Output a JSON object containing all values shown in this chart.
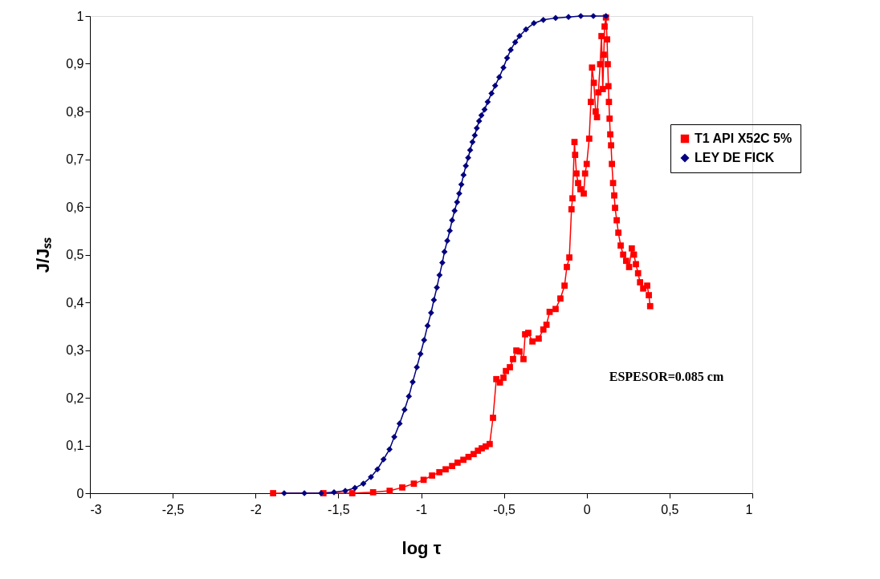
{
  "chart_data": {
    "type": "line",
    "xlabel": "log τ",
    "ylabel": "J/Jₛₛ",
    "xlim": [
      -3,
      1
    ],
    "xticks": [
      -3,
      {
        "value": -2.5,
        "label": "-2,5"
      },
      -2,
      {
        "value": -1.5,
        "label": "-1,5"
      },
      -1,
      {
        "value": -0.5,
        "label": "-0,5"
      },
      0,
      {
        "value": 0.5,
        "label": "0,5"
      },
      1
    ],
    "ylim": [
      0,
      1
    ],
    "yticks": [
      0,
      {
        "value": 0.1,
        "label": "0,1"
      },
      {
        "value": 0.2,
        "label": "0,2"
      },
      {
        "value": 0.3,
        "label": "0,3"
      },
      {
        "value": 0.4,
        "label": "0,4"
      },
      {
        "value": 0.5,
        "label": "0,5"
      },
      {
        "value": 0.6,
        "label": "0,6"
      },
      {
        "value": 0.7,
        "label": "0,7"
      },
      {
        "value": 0.8,
        "label": "0,8"
      },
      {
        "value": 0.9,
        "label": "0,9"
      },
      1
    ],
    "grid": false,
    "legend": "right",
    "line_style": "solid",
    "annotations": [
      "ESPESOR=0.085 cm"
    ],
    "series": [
      {
        "name": "T1 API X52C 5%",
        "color": "#ff0000",
        "marker": "square",
        "x": [
          -1.894,
          -1.59,
          -1.416,
          -1.29,
          -1.19,
          -1.114,
          -1.044,
          -0.985,
          -0.934,
          -0.89,
          -0.852,
          -0.813,
          -0.78,
          -0.745,
          -0.714,
          -0.683,
          -0.657,
          -0.634,
          -0.61,
          -0.586,
          -0.566,
          -0.546,
          -0.524,
          -0.503,
          -0.488,
          -0.464,
          -0.445,
          -0.425,
          -0.406,
          -0.382,
          -0.372,
          -0.353,
          -0.328,
          -0.29,
          -0.262,
          -0.243,
          -0.224,
          -0.188,
          -0.159,
          -0.134,
          -0.12,
          -0.105,
          -0.092,
          -0.086,
          -0.074,
          -0.07,
          -0.062,
          -0.052,
          -0.038,
          -0.018,
          -0.01,
          0.0,
          0.015,
          0.025,
          0.032,
          0.043,
          0.054,
          0.062,
          0.07,
          0.081,
          0.089,
          0.097,
          0.103,
          0.108,
          0.116,
          0.123,
          0.127,
          0.131,
          0.134,
          0.138,
          0.142,
          0.147,
          0.152,
          0.159,
          0.166,
          0.171,
          0.181,
          0.191,
          0.205,
          0.22,
          0.238,
          0.256,
          0.272,
          0.285,
          0.297,
          0.31,
          0.322,
          0.341,
          0.365,
          0.375,
          0.383
        ],
        "values": [
          0,
          0,
          0,
          0.002,
          0.005,
          0.012,
          0.02,
          0.028,
          0.037,
          0.044,
          0.05,
          0.057,
          0.064,
          0.07,
          0.076,
          0.082,
          0.089,
          0.094,
          0.098,
          0.103,
          0.158,
          0.239,
          0.232,
          0.242,
          0.256,
          0.264,
          0.281,
          0.299,
          0.297,
          0.281,
          0.333,
          0.336,
          0.318,
          0.324,
          0.343,
          0.353,
          0.38,
          0.386,
          0.408,
          0.435,
          0.474,
          0.494,
          0.595,
          0.618,
          0.736,
          0.709,
          0.67,
          0.65,
          0.637,
          0.628,
          0.67,
          0.69,
          0.743,
          0.82,
          0.892,
          0.86,
          0.8,
          0.788,
          0.84,
          0.899,
          0.958,
          0.847,
          0.919,
          0.978,
          0.997,
          0.951,
          0.899,
          0.853,
          0.82,
          0.785,
          0.752,
          0.729,
          0.69,
          0.65,
          0.624,
          0.598,
          0.572,
          0.546,
          0.519,
          0.5,
          0.487,
          0.474,
          0.513,
          0.5,
          0.48,
          0.461,
          0.442,
          0.429,
          0.435,
          0.415,
          0.392
        ]
      },
      {
        "name": "LEY DE FICK",
        "color": "#000080",
        "marker": "diamond",
        "x": [
          -1.827,
          -1.705,
          -1.604,
          -1.526,
          -1.458,
          -1.4,
          -1.349,
          -1.303,
          -1.264,
          -1.227,
          -1.191,
          -1.162,
          -1.13,
          -1.1,
          -1.074,
          -1.051,
          -1.026,
          -1.004,
          -0.982,
          -0.961,
          -0.94,
          -0.923,
          -0.905,
          -0.889,
          -0.872,
          -0.859,
          -0.842,
          -0.827,
          -0.813,
          -0.798,
          -0.783,
          -0.77,
          -0.757,
          -0.744,
          -0.73,
          -0.716,
          -0.704,
          -0.69,
          -0.676,
          -0.664,
          -0.65,
          -0.636,
          -0.617,
          -0.598,
          -0.575,
          -0.553,
          -0.528,
          -0.503,
          -0.481,
          -0.459,
          -0.432,
          -0.406,
          -0.367,
          -0.319,
          -0.262,
          -0.188,
          -0.11,
          -0.036,
          0.04,
          0.116
        ],
        "values": [
          0,
          0,
          0,
          0.002,
          0.005,
          0.011,
          0.02,
          0.034,
          0.05,
          0.071,
          0.092,
          0.118,
          0.146,
          0.175,
          0.203,
          0.233,
          0.264,
          0.292,
          0.321,
          0.351,
          0.378,
          0.405,
          0.431,
          0.457,
          0.483,
          0.506,
          0.529,
          0.55,
          0.572,
          0.592,
          0.61,
          0.628,
          0.647,
          0.667,
          0.686,
          0.703,
          0.719,
          0.736,
          0.75,
          0.765,
          0.78,
          0.792,
          0.804,
          0.82,
          0.838,
          0.854,
          0.872,
          0.892,
          0.912,
          0.929,
          0.945,
          0.958,
          0.972,
          0.985,
          0.992,
          0.996,
          0.998,
          1,
          1,
          1
        ]
      }
    ]
  }
}
